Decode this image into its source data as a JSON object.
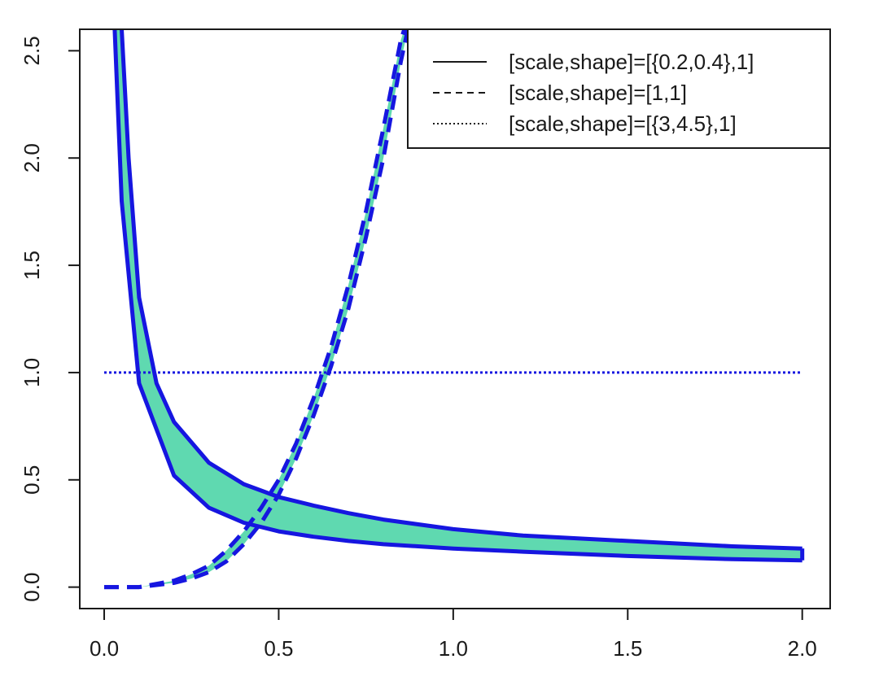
{
  "chart_data": {
    "type": "area",
    "title": "",
    "xlabel": "",
    "ylabel": "",
    "xlim": [
      -0.07,
      2.08
    ],
    "ylim": [
      -0.1,
      2.6
    ],
    "x_ticks": [
      "0.0",
      "0.5",
      "1.0",
      "1.5",
      "2.0"
    ],
    "y_ticks": [
      "0.0",
      "0.5",
      "1.0",
      "1.5",
      "2.0",
      "2.5"
    ],
    "legend": {
      "position": "top-right",
      "entries": [
        {
          "label": "[scale,shape]=[{0.2,0.4},1]",
          "linestyle": "solid"
        },
        {
          "label": "[scale,shape]=[1,1]",
          "linestyle": "dashed"
        },
        {
          "label": "[scale,shape]=[{3,4.5},1]",
          "linestyle": "dotted"
        }
      ]
    },
    "series": [
      {
        "linestyle": "solid",
        "band": true,
        "lower": {
          "x": [
            0.03,
            0.05,
            0.1,
            0.2,
            0.3,
            0.4,
            0.5,
            0.6,
            0.7,
            0.8,
            1.0,
            1.2,
            1.5,
            1.8,
            2.0
          ],
          "y": [
            2.6,
            1.8,
            0.95,
            0.52,
            0.37,
            0.3,
            0.26,
            0.235,
            0.215,
            0.2,
            0.18,
            0.165,
            0.145,
            0.13,
            0.125
          ]
        },
        "upper": {
          "x": [
            0.05,
            0.07,
            0.1,
            0.15,
            0.2,
            0.3,
            0.4,
            0.5,
            0.6,
            0.7,
            0.8,
            1.0,
            1.2,
            1.5,
            1.8,
            2.0
          ],
          "y": [
            2.6,
            2.0,
            1.35,
            0.95,
            0.77,
            0.58,
            0.48,
            0.42,
            0.38,
            0.345,
            0.315,
            0.27,
            0.24,
            0.215,
            0.19,
            0.18
          ]
        }
      },
      {
        "linestyle": "dashed",
        "band": true,
        "lower": {
          "x": [
            0.0,
            0.1,
            0.2,
            0.25,
            0.3,
            0.35,
            0.4,
            0.45,
            0.5,
            0.55,
            0.6,
            0.65,
            0.7,
            0.75,
            0.8,
            0.85,
            0.87
          ],
          "y": [
            0.0,
            0.0,
            0.02,
            0.04,
            0.07,
            0.12,
            0.2,
            0.3,
            0.43,
            0.6,
            0.8,
            1.03,
            1.3,
            1.63,
            2.0,
            2.45,
            2.6
          ]
        },
        "upper": {
          "x": [
            0.0,
            0.1,
            0.2,
            0.25,
            0.3,
            0.35,
            0.4,
            0.45,
            0.5,
            0.55,
            0.6,
            0.65,
            0.7,
            0.75,
            0.8,
            0.85,
            0.86
          ],
          "y": [
            0.0,
            0.0,
            0.03,
            0.06,
            0.1,
            0.17,
            0.26,
            0.37,
            0.5,
            0.67,
            0.88,
            1.12,
            1.41,
            1.75,
            2.14,
            2.55,
            2.6
          ]
        }
      },
      {
        "linestyle": "dotted",
        "band": false,
        "x": [
          0.0,
          2.0
        ],
        "y": [
          1.0,
          1.0
        ]
      }
    ]
  },
  "colors": {
    "line": "#1616e0",
    "band_fill": "#5fd9b0",
    "axis": "#1a1a1a"
  }
}
